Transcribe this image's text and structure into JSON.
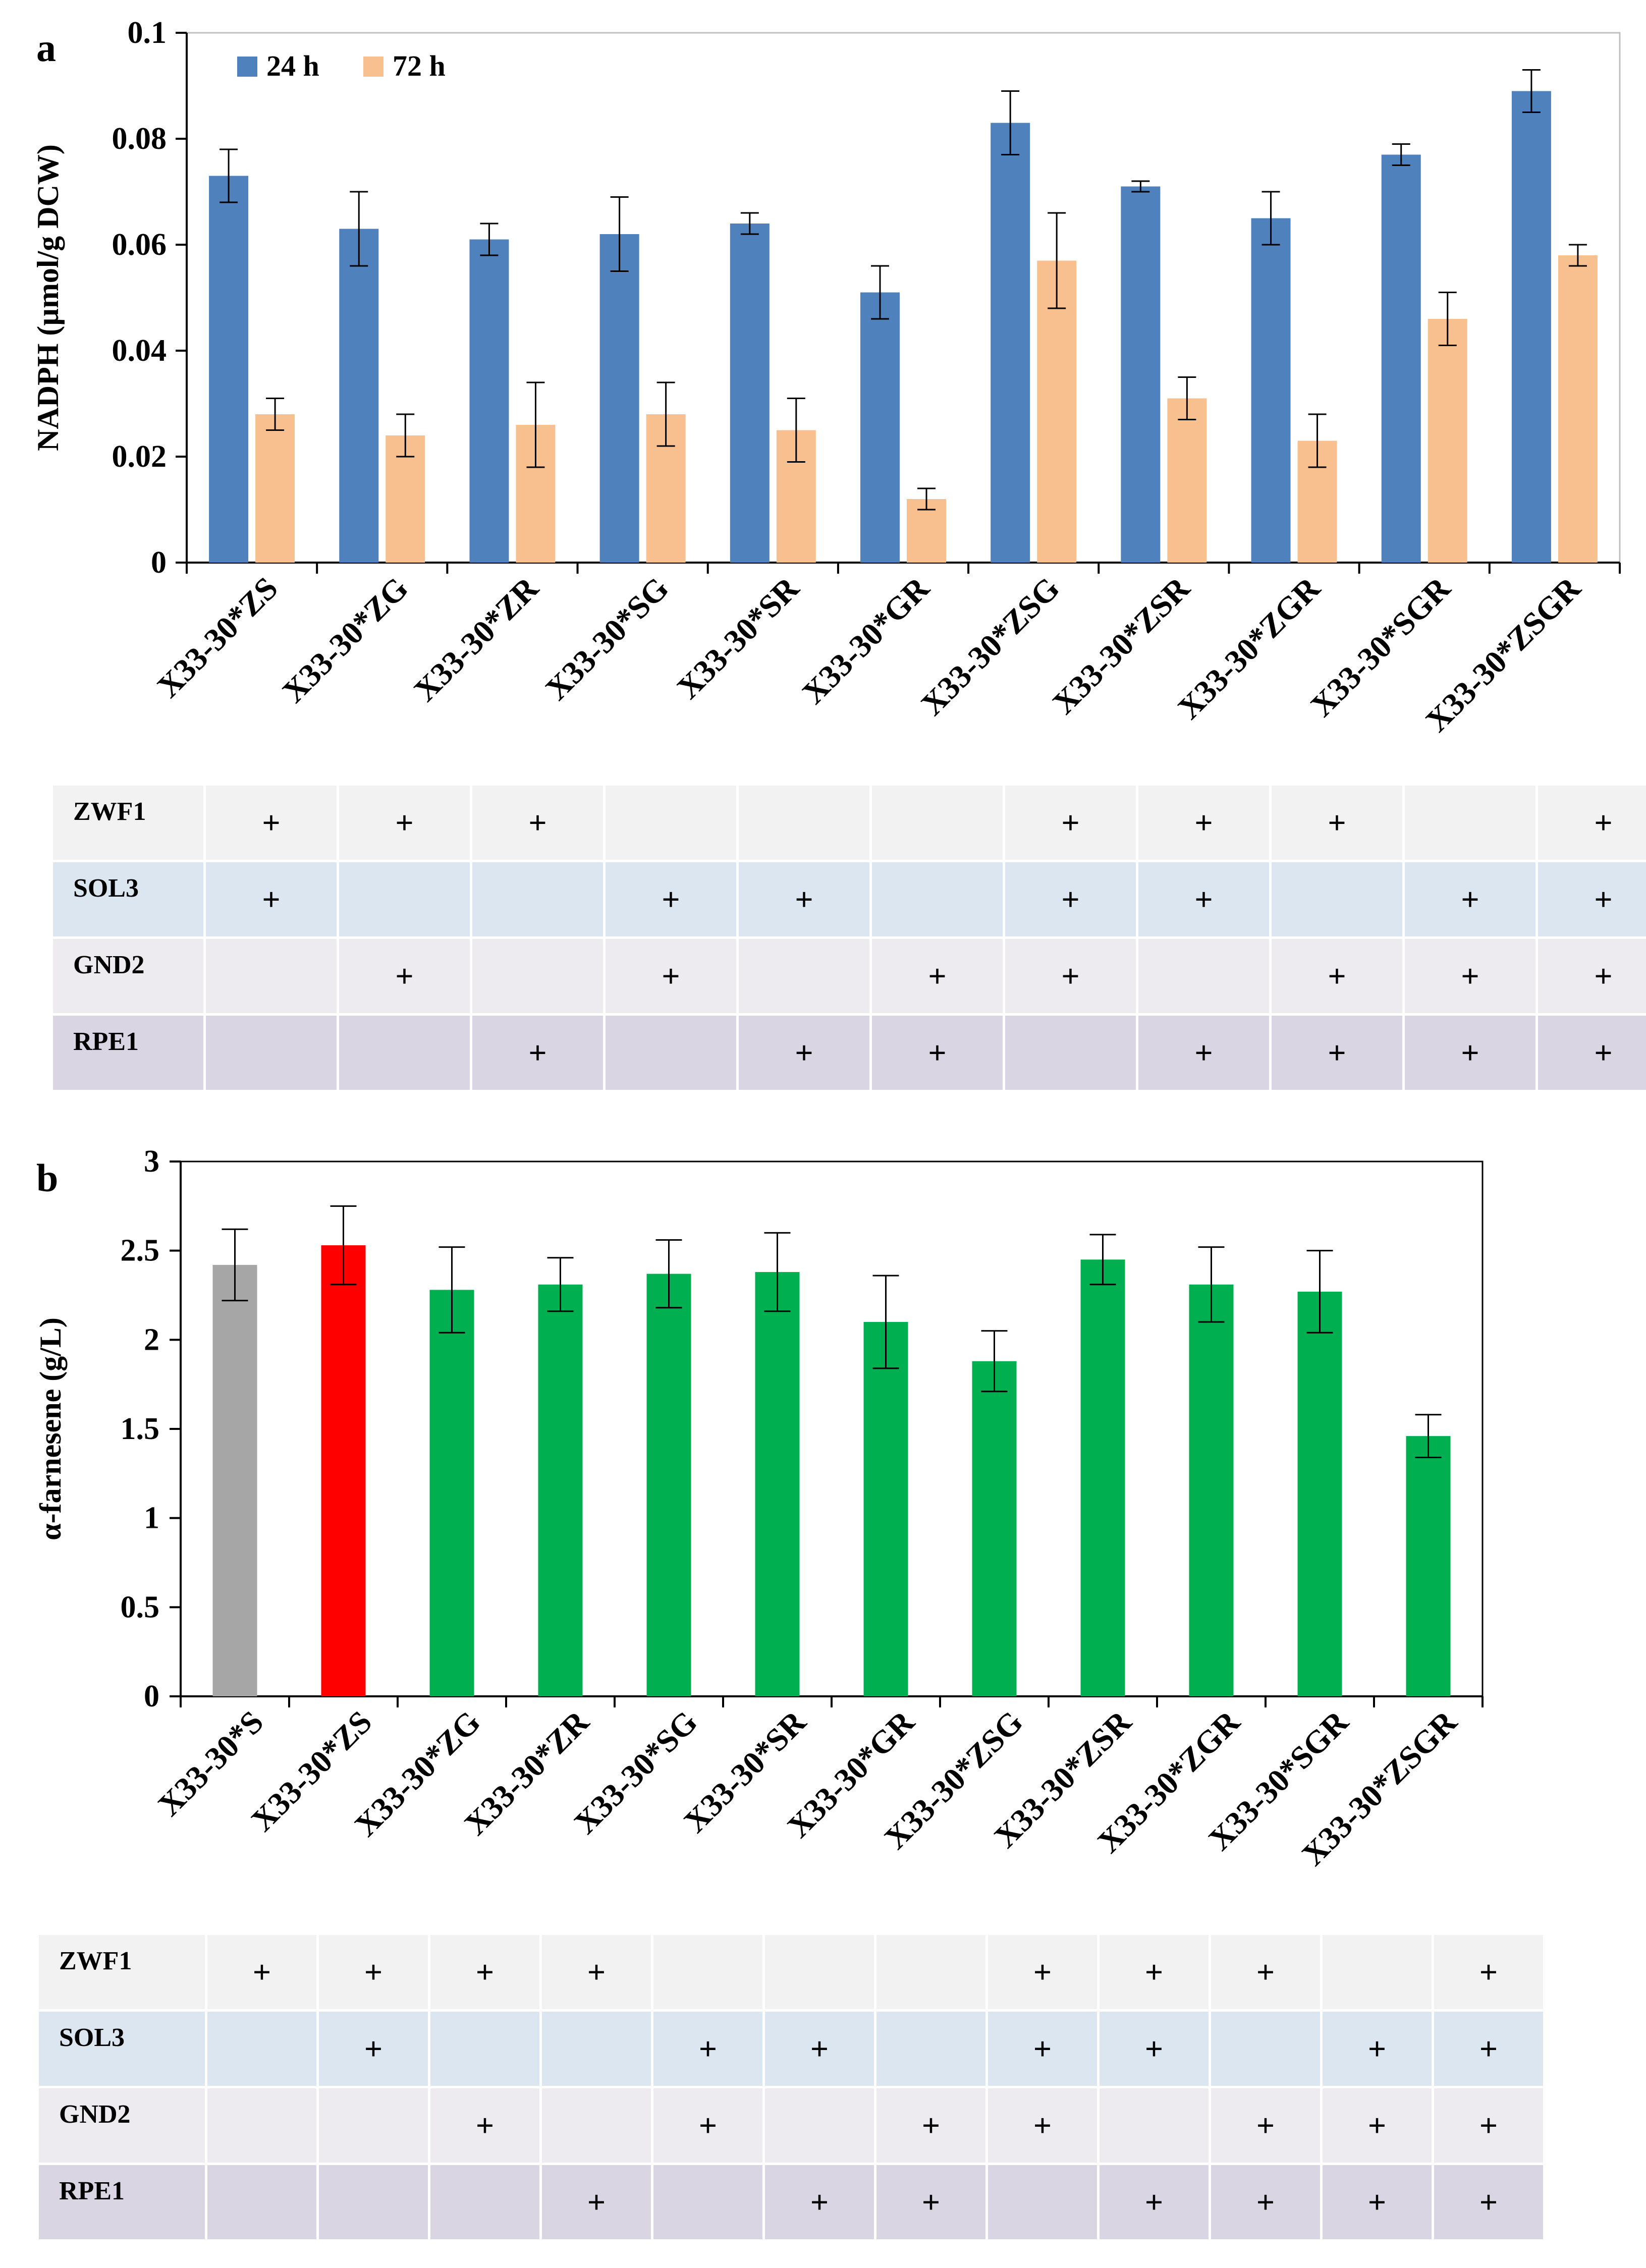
{
  "panels": {
    "a": {
      "letter": "a"
    },
    "b": {
      "letter": "b"
    }
  },
  "colors": {
    "series_24h": "#4f81bd",
    "series_72h": "#f8c08f",
    "control": "#a6a6a6",
    "highlight": "#ff0000",
    "others": "#00b050",
    "row_zwf1": "#f2f2f2",
    "row_sol3": "#dce6f1",
    "row_gnd2": "#edebf0",
    "row_rpe1": "#d9d5e3"
  },
  "chart_data": [
    {
      "type": "bar",
      "ylabel": "NADPH (µmol/g DCW)",
      "ylim": [
        0,
        0.1
      ],
      "yticks": [
        "0",
        "0.02",
        "0.04",
        "0.06",
        "0.08",
        "0.1"
      ],
      "ytick_values": [
        0,
        0.02,
        0.04,
        0.06,
        0.08,
        0.1
      ],
      "legend_position": "top-left",
      "categories": [
        "X33-30*ZS",
        "X33-30*ZG",
        "X33-30*ZR",
        "X33-30*SG",
        "X33-30*SR",
        "X33-30*GR",
        "X33-30*ZSG",
        "X33-30*ZSR",
        "X33-30*ZGR",
        "X33-30*SGR",
        "X33-30*ZSGR"
      ],
      "series": [
        {
          "name": "24 h",
          "values": [
            0.073,
            0.063,
            0.061,
            0.062,
            0.064,
            0.051,
            0.083,
            0.071,
            0.065,
            0.077,
            0.089
          ],
          "errors": [
            0.005,
            0.007,
            0.003,
            0.007,
            0.002,
            0.005,
            0.006,
            0.001,
            0.005,
            0.002,
            0.004
          ]
        },
        {
          "name": "72 h",
          "values": [
            0.028,
            0.024,
            0.026,
            0.028,
            0.025,
            0.012,
            0.057,
            0.031,
            0.023,
            0.046,
            0.058
          ],
          "errors": [
            0.003,
            0.004,
            0.008,
            0.006,
            0.006,
            0.002,
            0.009,
            0.004,
            0.005,
            0.005,
            0.002
          ]
        }
      ]
    },
    {
      "type": "bar",
      "ylabel": "α-farnesene (g/L)",
      "ylim": [
        0,
        3
      ],
      "yticks": [
        "0",
        "0.5",
        "1",
        "1.5",
        "2",
        "2.5",
        "3"
      ],
      "ytick_values": [
        0,
        0.5,
        1,
        1.5,
        2,
        2.5,
        3
      ],
      "categories": [
        "X33-30*S",
        "X33-30*ZS",
        "X33-30*ZG",
        "X33-30*ZR",
        "X33-30*SG",
        "X33-30*SR",
        "X33-30*GR",
        "X33-30*ZSG",
        "X33-30*ZSR",
        "X33-30*ZGR",
        "X33-30*SGR",
        "X33-30*ZSGR"
      ],
      "values": [
        2.42,
        2.53,
        2.28,
        2.31,
        2.37,
        2.38,
        2.1,
        1.88,
        2.45,
        2.31,
        2.27,
        1.46
      ],
      "errors": [
        0.2,
        0.22,
        0.24,
        0.15,
        0.19,
        0.22,
        0.26,
        0.17,
        0.14,
        0.21,
        0.23,
        0.12
      ],
      "bar_color_roles": [
        "control",
        "highlight",
        "others",
        "others",
        "others",
        "others",
        "others",
        "others",
        "others",
        "others",
        "others",
        "others"
      ]
    }
  ],
  "tables": {
    "a": {
      "mark": "+",
      "rows": [
        {
          "gene": "ZWF1",
          "color_key": "row_zwf1",
          "marks": [
            true,
            true,
            true,
            false,
            false,
            false,
            true,
            true,
            true,
            false,
            true
          ]
        },
        {
          "gene": "SOL3",
          "color_key": "row_sol3",
          "marks": [
            true,
            false,
            false,
            true,
            true,
            false,
            true,
            true,
            false,
            true,
            true
          ]
        },
        {
          "gene": "GND2",
          "color_key": "row_gnd2",
          "marks": [
            false,
            true,
            false,
            true,
            false,
            true,
            true,
            false,
            true,
            true,
            true
          ]
        },
        {
          "gene": "RPE1",
          "color_key": "row_rpe1",
          "marks": [
            false,
            false,
            true,
            false,
            true,
            true,
            false,
            true,
            true,
            true,
            true
          ]
        }
      ]
    },
    "b": {
      "mark": "+",
      "rows": [
        {
          "gene": "ZWF1",
          "color_key": "row_zwf1",
          "marks": [
            true,
            true,
            true,
            true,
            false,
            false,
            false,
            true,
            true,
            true,
            false,
            true
          ]
        },
        {
          "gene": "SOL3",
          "color_key": "row_sol3",
          "marks": [
            false,
            true,
            false,
            false,
            true,
            true,
            false,
            true,
            true,
            false,
            true,
            true
          ]
        },
        {
          "gene": "GND2",
          "color_key": "row_gnd2",
          "marks": [
            false,
            false,
            true,
            false,
            true,
            false,
            true,
            true,
            false,
            true,
            true,
            true
          ]
        },
        {
          "gene": "RPE1",
          "color_key": "row_rpe1",
          "marks": [
            false,
            false,
            false,
            true,
            false,
            true,
            true,
            false,
            true,
            true,
            true,
            true
          ]
        }
      ]
    }
  }
}
